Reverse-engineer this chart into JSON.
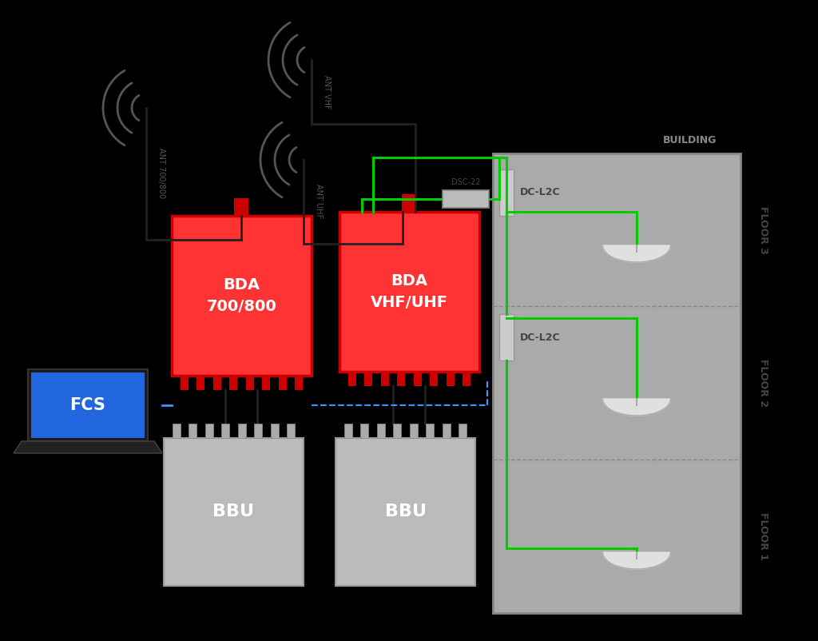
{
  "bg": "#000000",
  "bld_fill": "#aaaaaa",
  "bld_edge": "#888888",
  "bda_fill": "#ff3333",
  "bda_edge": "#cc0000",
  "bbu_fill": "#bbbbbb",
  "bbu_edge": "#999999",
  "fcs_fill": "#2266dd",
  "green": "#00cc00",
  "blue": "#3399ff",
  "dark": "#333333",
  "ant_color": "#555555",
  "lbl_dark": "#444444",
  "lbl_mid": "#666666",
  "lbl_light": "#888888",
  "white": "#ffffff",
  "bda1_text": "BDA\n700/800",
  "bda2_text": "BDA\nVHF/UHF",
  "bbu_text": "BBU",
  "fcs_text": "FCS",
  "dsc_text": "DSC-22",
  "dc1_text": "DC-L2C",
  "dc2_text": "DC-L2C",
  "bld_text": "BUILDING",
  "f3_text": "FLOOR 3",
  "f2_text": "FLOOR 2",
  "f1_text": "FLOOR 1",
  "ant1_text": "ANT 700/800",
  "ant2_text": "ANT UHF",
  "ant3_text": "ANT VHF"
}
